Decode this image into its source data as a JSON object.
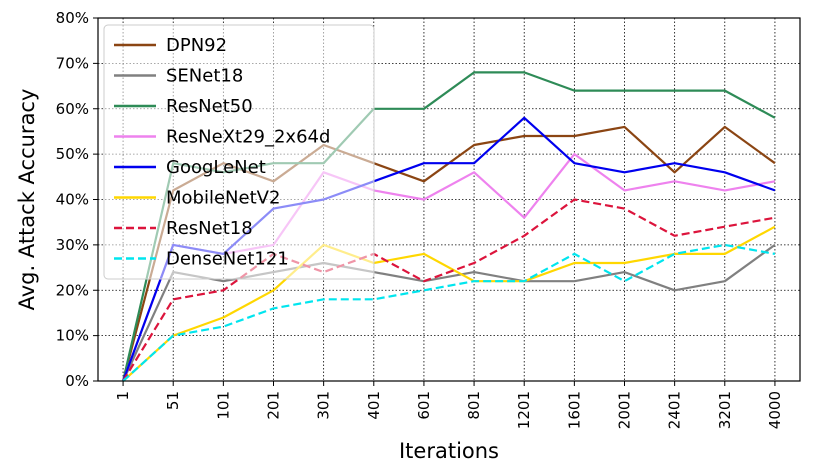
{
  "chart_data": {
    "type": "line",
    "xlabel": "Iterations",
    "ylabel": "Avg. Attack Accuracy",
    "x": [
      "1",
      "51",
      "101",
      "201",
      "301",
      "401",
      "601",
      "801",
      "1201",
      "1601",
      "2001",
      "2401",
      "3201",
      "4000"
    ],
    "ylim": [
      0,
      80
    ],
    "y_ticks": [
      "0%",
      "10%",
      "20%",
      "30%",
      "40%",
      "50%",
      "60%",
      "70%",
      "80%"
    ],
    "grid": true,
    "legend_position": "top-left",
    "series": [
      {
        "name": "DPN92",
        "color": "#8B4513",
        "style": "solid",
        "values": [
          0,
          42,
          48,
          44,
          52,
          48,
          44,
          52,
          54,
          54,
          56,
          46,
          56,
          48
        ]
      },
      {
        "name": "SENet18",
        "color": "#808080",
        "style": "solid",
        "values": [
          0,
          24,
          22,
          24,
          26,
          24,
          22,
          24,
          22,
          22,
          24,
          20,
          22,
          30
        ]
      },
      {
        "name": "ResNet50",
        "color": "#2E8B57",
        "style": "solid",
        "values": [
          0,
          48,
          46,
          48,
          48,
          60,
          60,
          68,
          68,
          64,
          64,
          64,
          64,
          58
        ]
      },
      {
        "name": "ResNeXt29_2x64d",
        "color": "#EE82EE",
        "style": "solid",
        "values": [
          0,
          30,
          28,
          30,
          46,
          42,
          40,
          46,
          36,
          50,
          42,
          44,
          42,
          44
        ]
      },
      {
        "name": "GoogLeNet",
        "color": "#0000EE",
        "style": "solid",
        "values": [
          0,
          30,
          28,
          38,
          40,
          44,
          48,
          48,
          58,
          48,
          46,
          48,
          46,
          42
        ]
      },
      {
        "name": "MobileNetV2",
        "color": "#FFD700",
        "style": "solid",
        "values": [
          0,
          10,
          14,
          20,
          30,
          26,
          28,
          22,
          22,
          26,
          26,
          28,
          28,
          34
        ]
      },
      {
        "name": "ResNet18",
        "color": "#DC143C",
        "style": "dashed",
        "values": [
          0,
          18,
          20,
          28,
          24,
          28,
          22,
          26,
          32,
          40,
          38,
          32,
          34,
          36
        ]
      },
      {
        "name": "DenseNet121",
        "color": "#00E5EE",
        "style": "dashed",
        "values": [
          0,
          10,
          12,
          16,
          18,
          18,
          20,
          22,
          22,
          28,
          22,
          28,
          30,
          28
        ]
      }
    ]
  }
}
